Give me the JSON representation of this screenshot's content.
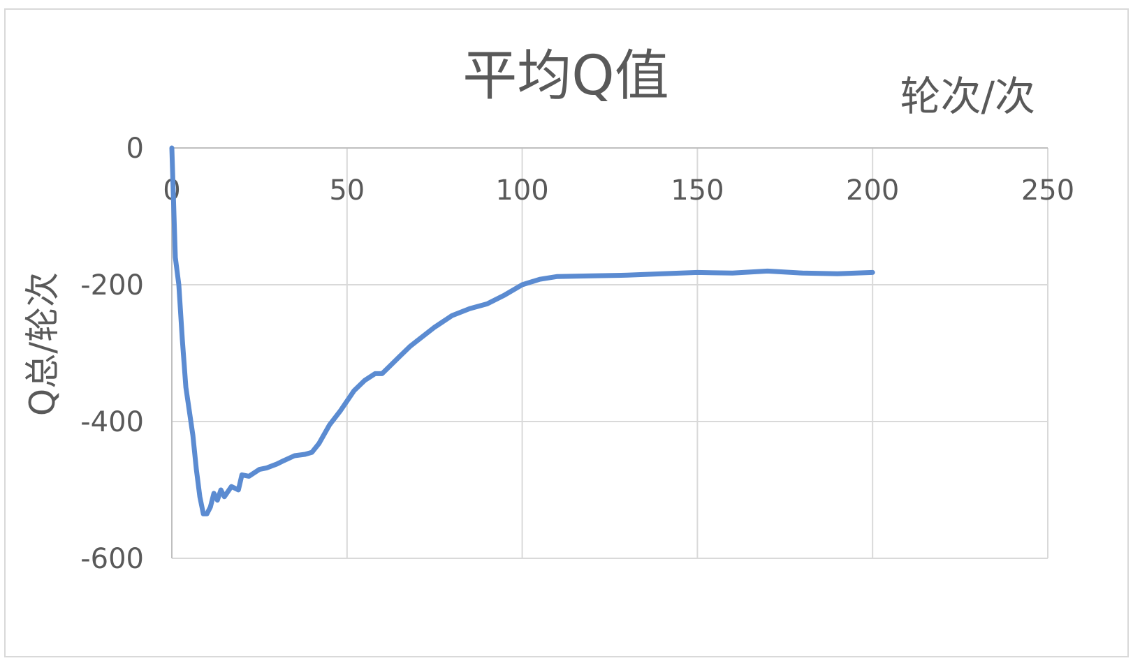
{
  "chart_data": {
    "type": "line",
    "title": "平均Q值",
    "xlabel": "轮次/次",
    "ylabel": "Q总/轮次",
    "xlim": [
      0,
      250
    ],
    "ylim": [
      -600,
      0
    ],
    "xticks": [
      "0",
      "50",
      "100",
      "150",
      "200",
      "250"
    ],
    "yticks": [
      "0",
      "-200",
      "-400",
      "-600"
    ],
    "grid": true,
    "x_axis_position": "top",
    "legend": "none",
    "series": [
      {
        "color": "#5b8bd1",
        "x": [
          0,
          1,
          2,
          3,
          4,
          5,
          6,
          7,
          8,
          9,
          10,
          11,
          12,
          13,
          14,
          15,
          17,
          19,
          20,
          22,
          25,
          27,
          30,
          32,
          35,
          38,
          40,
          42,
          45,
          48,
          50,
          52,
          55,
          58,
          60,
          62,
          65,
          68,
          70,
          75,
          80,
          85,
          90,
          95,
          100,
          105,
          110,
          120,
          130,
          140,
          150,
          160,
          170,
          180,
          190,
          200
        ],
        "y": [
          0,
          -160,
          -200,
          -280,
          -350,
          -385,
          -420,
          -470,
          -510,
          -535,
          -535,
          -525,
          -505,
          -515,
          -500,
          -510,
          -495,
          -500,
          -478,
          -480,
          -470,
          -468,
          -462,
          -457,
          -450,
          -448,
          -445,
          -432,
          -405,
          -385,
          -370,
          -355,
          -340,
          -330,
          -330,
          -320,
          -305,
          -290,
          -282,
          -262,
          -245,
          -235,
          -228,
          -215,
          -200,
          -192,
          -188,
          -187,
          -186,
          -184,
          -182,
          -183,
          -180,
          -183,
          -184,
          -182
        ]
      }
    ]
  }
}
